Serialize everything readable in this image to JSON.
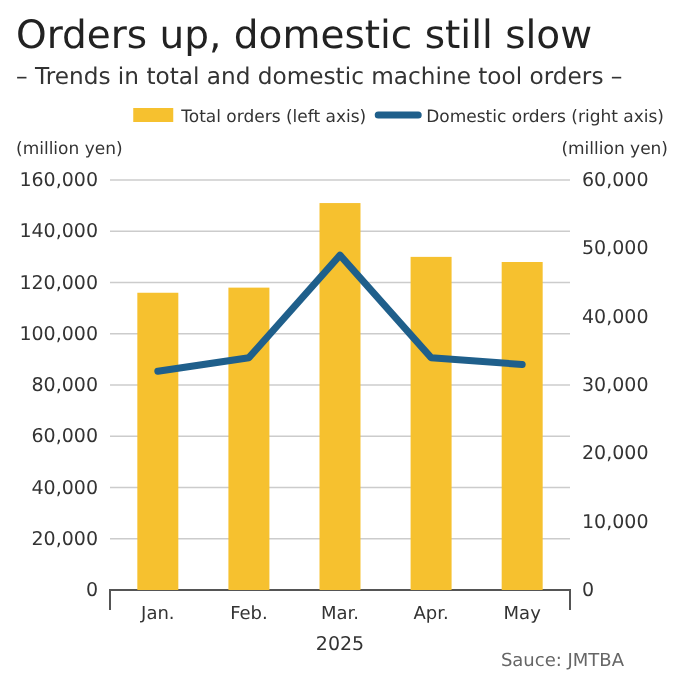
{
  "chart_data": {
    "type": "bar",
    "title": "Orders up, domestic still slow",
    "subtitle": "– Trends in total and domestic machine tool orders –",
    "xlabel": "2025",
    "ylabel": "(million yen)",
    "y2label": "(million yen)",
    "categories": [
      "Jan.",
      "Feb.",
      "Mar.",
      "Apr.",
      "May"
    ],
    "series": [
      {
        "name": "Total orders (left axis)",
        "color": "#f6c12f",
        "values": [
          116000,
          118000,
          151000,
          130000,
          128000
        ]
      },
      {
        "name": "Domestic orders (right axis)",
        "type": "line",
        "axis": "y2",
        "color": "#1f5f8b",
        "values": [
          32000,
          34000,
          49000,
          34000,
          33000
        ]
      }
    ],
    "ylim": [
      0,
      160000
    ],
    "yticks": [
      {
        "value": 0,
        "label": "0"
      },
      {
        "value": 20000,
        "label": "20,000"
      },
      {
        "value": 40000,
        "label": "40,000"
      },
      {
        "value": 60000,
        "label": "60,000"
      },
      {
        "value": 80000,
        "label": "80,000"
      },
      {
        "value": 100000,
        "label": "100,000"
      },
      {
        "value": 120000,
        "label": "120,000"
      },
      {
        "value": 140000,
        "label": "140,000"
      },
      {
        "value": 160000,
        "label": "160,000"
      }
    ],
    "y2lim": [
      0,
      60000
    ],
    "y2ticks": [
      {
        "value": 0,
        "label": "0"
      },
      {
        "value": 10000,
        "label": "10,000"
      },
      {
        "value": 20000,
        "label": "20,000"
      },
      {
        "value": 30000,
        "label": "30,000"
      },
      {
        "value": 40000,
        "label": "40,000"
      },
      {
        "value": 50000,
        "label": "50,000"
      },
      {
        "value": 60000,
        "label": "60,000"
      }
    ],
    "grid": "y",
    "legend": "top",
    "line_style": "solid",
    "marker": "none",
    "annotations": [
      "Sauce: JMTBA"
    ]
  }
}
